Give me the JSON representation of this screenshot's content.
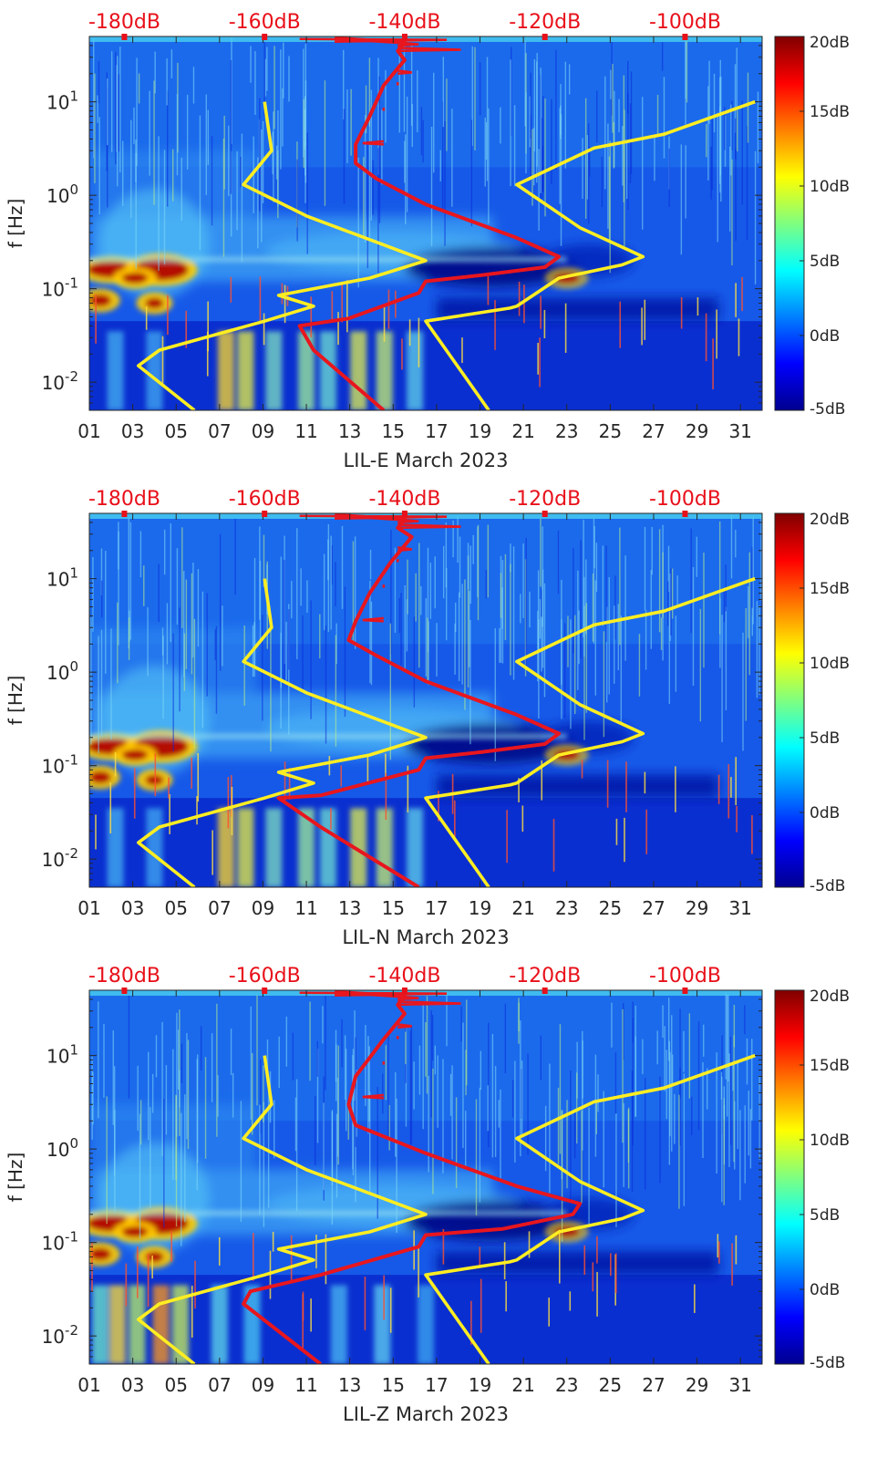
{
  "colors": {
    "noise_model_curve": "#ffee22",
    "psd_percentile_curve": "#e8161e",
    "top_axis_text": "#e8101a",
    "colormap": "jet"
  },
  "chart_data": [
    {
      "type": "heatmap",
      "xlabel": "LIL-E March 2023",
      "ylabel": "f [Hz]",
      "yscale": "log",
      "xlim": [
        1,
        32
      ],
      "ylim": [
        0.005,
        50
      ],
      "x_ticks": [
        "01",
        "03",
        "05",
        "07",
        "09",
        "11",
        "13",
        "15",
        "17",
        "19",
        "21",
        "23",
        "25",
        "27",
        "29",
        "31"
      ],
      "y_ticks": [
        {
          "value": 0.01,
          "base": "10",
          "exp": "-2"
        },
        {
          "value": 0.1,
          "base": "10",
          "exp": "-1"
        },
        {
          "value": 1,
          "base": "10",
          "exp": "0"
        },
        {
          "value": 10,
          "base": "10",
          "exp": "1"
        }
      ],
      "top_axis_ticks": [
        "-180dB",
        "-160dB",
        "-140dB",
        "-120dB",
        "-100dB"
      ],
      "top_axis_range_db": [
        -185,
        -89
      ],
      "colorbar": {
        "range": [
          -5,
          20
        ],
        "ticks": [
          "-5dB",
          "0dB",
          "5dB",
          "10dB",
          "15dB",
          "20dB"
        ]
      },
      "series": [
        {
          "kind": "noise-model-low",
          "points_db_f": [
            [
              -170,
              0.005
            ],
            [
              -178,
              0.015
            ],
            [
              -175,
              0.022
            ],
            [
              -160,
              0.045
            ],
            [
              -153,
              0.065
            ],
            [
              -158,
              0.085
            ],
            [
              -145,
              0.13
            ],
            [
              -137,
              0.2
            ],
            [
              -154,
              0.6
            ],
            [
              -163,
              1.3
            ],
            [
              -159,
              3
            ],
            [
              -160,
              10
            ]
          ]
        },
        {
          "kind": "noise-model-high",
          "points_db_f": [
            [
              -128,
              0.005
            ],
            [
              -137,
              0.045
            ],
            [
              -125,
              0.062
            ],
            [
              -124,
              0.065
            ],
            [
              -118,
              0.13
            ],
            [
              -109,
              0.18
            ],
            [
              -106,
              0.22
            ],
            [
              -115,
              0.45
            ],
            [
              -124,
              1.3
            ],
            [
              -113,
              3.2
            ],
            [
              -103,
              4.5
            ],
            [
              -90,
              10
            ]
          ]
        },
        {
          "kind": "psd-curve",
          "points_db_f": [
            [
              -143,
              0.005
            ],
            [
              -153,
              0.022
            ],
            [
              -155,
              0.04
            ],
            [
              -148,
              0.048
            ],
            [
              -138,
              0.09
            ],
            [
              -137,
              0.12
            ],
            [
              -129,
              0.14
            ],
            [
              -120,
              0.17
            ],
            [
              -118,
              0.22
            ],
            [
              -124,
              0.35
            ],
            [
              -137,
              0.8
            ],
            [
              -144,
              1.5
            ],
            [
              -147,
              2.2
            ],
            [
              -147,
              3.5
            ],
            [
              -145,
              7
            ],
            [
              -143,
              15
            ],
            [
              -140,
              28
            ],
            [
              -141,
              35
            ],
            [
              -140,
              43
            ],
            [
              -150,
              48
            ]
          ]
        }
      ]
    },
    {
      "type": "heatmap",
      "xlabel": "LIL-N March 2023",
      "ylabel": "f [Hz]",
      "yscale": "log",
      "xlim": [
        1,
        32
      ],
      "ylim": [
        0.005,
        50
      ],
      "x_ticks": [
        "01",
        "03",
        "05",
        "07",
        "09",
        "11",
        "13",
        "15",
        "17",
        "19",
        "21",
        "23",
        "25",
        "27",
        "29",
        "31"
      ],
      "y_ticks": [
        {
          "value": 0.01,
          "base": "10",
          "exp": "-2"
        },
        {
          "value": 0.1,
          "base": "10",
          "exp": "-1"
        },
        {
          "value": 1,
          "base": "10",
          "exp": "0"
        },
        {
          "value": 10,
          "base": "10",
          "exp": "1"
        }
      ],
      "top_axis_ticks": [
        "-180dB",
        "-160dB",
        "-140dB",
        "-120dB",
        "-100dB"
      ],
      "top_axis_range_db": [
        -185,
        -89
      ],
      "colorbar": {
        "range": [
          -5,
          20
        ],
        "ticks": [
          "-5dB",
          "0dB",
          "5dB",
          "10dB",
          "15dB",
          "20dB"
        ]
      },
      "series": [
        {
          "kind": "noise-model-low",
          "points_db_f": [
            [
              -170,
              0.005
            ],
            [
              -178,
              0.015
            ],
            [
              -175,
              0.022
            ],
            [
              -160,
              0.045
            ],
            [
              -153,
              0.065
            ],
            [
              -158,
              0.085
            ],
            [
              -145,
              0.13
            ],
            [
              -137,
              0.2
            ],
            [
              -154,
              0.6
            ],
            [
              -163,
              1.3
            ],
            [
              -159,
              3
            ],
            [
              -160,
              10
            ]
          ]
        },
        {
          "kind": "noise-model-high",
          "points_db_f": [
            [
              -128,
              0.005
            ],
            [
              -137,
              0.045
            ],
            [
              -125,
              0.062
            ],
            [
              -124,
              0.065
            ],
            [
              -118,
              0.13
            ],
            [
              -109,
              0.18
            ],
            [
              -106,
              0.22
            ],
            [
              -115,
              0.45
            ],
            [
              -124,
              1.3
            ],
            [
              -113,
              3.2
            ],
            [
              -103,
              4.5
            ],
            [
              -90,
              10
            ]
          ]
        },
        {
          "kind": "psd-curve",
          "points_db_f": [
            [
              -138,
              0.005
            ],
            [
              -152,
              0.022
            ],
            [
              -158,
              0.045
            ],
            [
              -152,
              0.048
            ],
            [
              -138,
              0.09
            ],
            [
              -137,
              0.12
            ],
            [
              -129,
              0.14
            ],
            [
              -120,
              0.17
            ],
            [
              -118,
              0.22
            ],
            [
              -124,
              0.35
            ],
            [
              -137,
              0.8
            ],
            [
              -144,
              1.5
            ],
            [
              -148,
              2.2
            ],
            [
              -147,
              3.5
            ],
            [
              -145,
              7
            ],
            [
              -142,
              15
            ],
            [
              -139,
              28
            ],
            [
              -141,
              35
            ],
            [
              -140,
              43
            ],
            [
              -150,
              48
            ]
          ]
        }
      ]
    },
    {
      "type": "heatmap",
      "xlabel": "LIL-Z March 2023",
      "ylabel": "f [Hz]",
      "yscale": "log",
      "xlim": [
        1,
        32
      ],
      "ylim": [
        0.005,
        50
      ],
      "x_ticks": [
        "01",
        "03",
        "05",
        "07",
        "09",
        "11",
        "13",
        "15",
        "17",
        "19",
        "21",
        "23",
        "25",
        "27",
        "29",
        "31"
      ],
      "y_ticks": [
        {
          "value": 0.01,
          "base": "10",
          "exp": "-2"
        },
        {
          "value": 0.1,
          "base": "10",
          "exp": "-1"
        },
        {
          "value": 1,
          "base": "10",
          "exp": "0"
        },
        {
          "value": 10,
          "base": "10",
          "exp": "1"
        }
      ],
      "top_axis_ticks": [
        "-180dB",
        "-160dB",
        "-140dB",
        "-120dB",
        "-100dB"
      ],
      "top_axis_range_db": [
        -185,
        -89
      ],
      "colorbar": {
        "range": [
          -5,
          20
        ],
        "ticks": [
          "-5dB",
          "0dB",
          "5dB",
          "10dB",
          "15dB",
          "20dB"
        ]
      },
      "series": [
        {
          "kind": "noise-model-low",
          "points_db_f": [
            [
              -170,
              0.005
            ],
            [
              -178,
              0.015
            ],
            [
              -175,
              0.022
            ],
            [
              -160,
              0.045
            ],
            [
              -153,
              0.065
            ],
            [
              -158,
              0.085
            ],
            [
              -145,
              0.13
            ],
            [
              -137,
              0.2
            ],
            [
              -154,
              0.6
            ],
            [
              -163,
              1.3
            ],
            [
              -159,
              3
            ],
            [
              -160,
              10
            ]
          ]
        },
        {
          "kind": "noise-model-high",
          "points_db_f": [
            [
              -128,
              0.005
            ],
            [
              -137,
              0.045
            ],
            [
              -125,
              0.062
            ],
            [
              -124,
              0.065
            ],
            [
              -118,
              0.13
            ],
            [
              -109,
              0.18
            ],
            [
              -106,
              0.22
            ],
            [
              -115,
              0.45
            ],
            [
              -124,
              1.3
            ],
            [
              -113,
              3.2
            ],
            [
              -103,
              4.5
            ],
            [
              -90,
              10
            ]
          ]
        },
        {
          "kind": "psd-curve",
          "points_db_f": [
            [
              -152,
              0.005
            ],
            [
              -163,
              0.022
            ],
            [
              -162,
              0.03
            ],
            [
              -152,
              0.045
            ],
            [
              -138,
              0.09
            ],
            [
              -137,
              0.12
            ],
            [
              -126,
              0.14
            ],
            [
              -116,
              0.2
            ],
            [
              -115,
              0.26
            ],
            [
              -124,
              0.4
            ],
            [
              -137,
              0.9
            ],
            [
              -147,
              1.8
            ],
            [
              -148,
              3
            ],
            [
              -147,
              6
            ],
            [
              -143,
              15
            ],
            [
              -140,
              28
            ],
            [
              -141,
              35
            ],
            [
              -140,
              43
            ],
            [
              -150,
              48
            ]
          ]
        }
      ]
    }
  ]
}
